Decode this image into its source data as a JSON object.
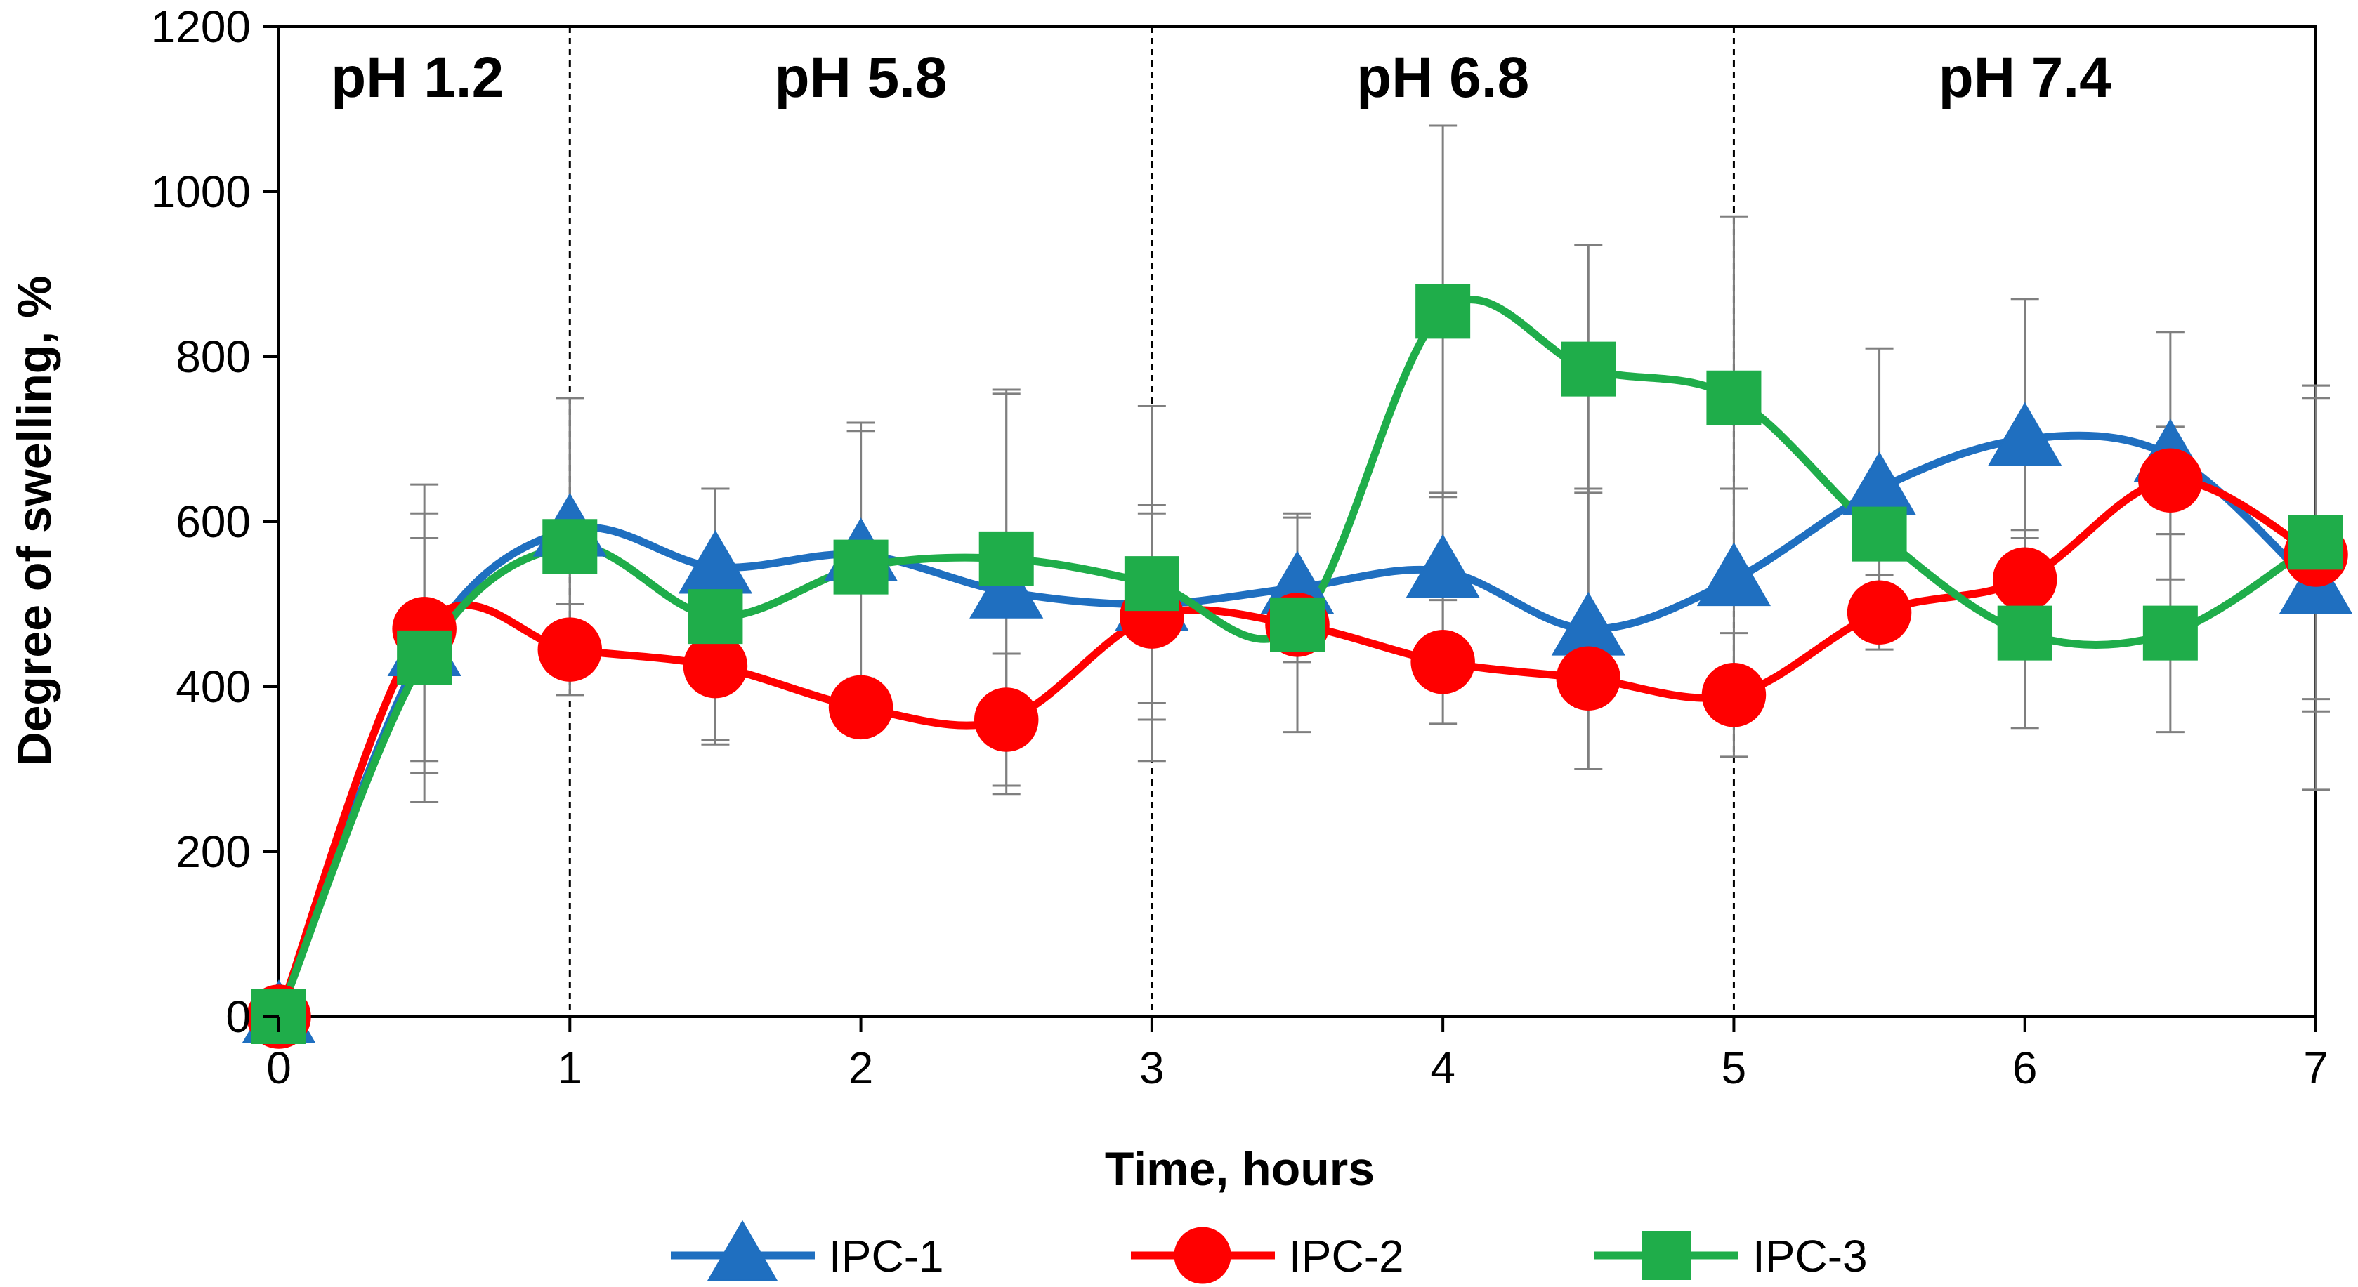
{
  "chart_data": {
    "type": "line",
    "title": "",
    "xlabel": "Time, hours",
    "ylabel": "Degree of swelling, %",
    "xlim": [
      0,
      7
    ],
    "ylim": [
      0,
      1200
    ],
    "xticks": [
      0,
      1,
      2,
      3,
      4,
      5,
      6,
      7
    ],
    "yticks": [
      0,
      200,
      400,
      600,
      800,
      1000,
      1200
    ],
    "x": [
      0,
      0.5,
      1,
      1.5,
      2,
      2.5,
      3,
      3.5,
      4,
      4.5,
      5,
      5.5,
      6,
      6.5,
      7
    ],
    "series": [
      {
        "name": "IPC-1",
        "color": "#1f6fc0",
        "marker": "triangle",
        "values": [
          0,
          445,
          590,
          545,
          560,
          515,
          500,
          520,
          540,
          470,
          530,
          640,
          700,
          680,
          520
        ],
        "errors": [
          0,
          135,
          160,
          95,
          160,
          245,
          120,
          90,
          95,
          170,
          110,
          170,
          170,
          150,
          245
        ]
      },
      {
        "name": "IPC-2",
        "color": "#ff0000",
        "marker": "circle",
        "values": [
          0,
          470,
          445,
          425,
          375,
          360,
          485,
          475,
          430,
          410,
          390,
          490,
          530,
          650,
          560
        ],
        "errors": [
          0,
          175,
          55,
          90,
          35,
          80,
          125,
          45,
          75,
          35,
          75,
          45,
          60,
          65,
          190
        ]
      },
      {
        "name": "IPC-3",
        "color": "#1fad4a",
        "marker": "square",
        "values": [
          0,
          435,
          570,
          485,
          545,
          555,
          525,
          475,
          855,
          785,
          750,
          585,
          465,
          465,
          575
        ],
        "errors": [
          0,
          175,
          180,
          155,
          165,
          200,
          215,
          130,
          225,
          150,
          220,
          0,
          115,
          120,
          190
        ]
      }
    ],
    "regions": [
      {
        "label": "pH 1.2",
        "from": 0,
        "to": 1
      },
      {
        "label": "pH 5.8",
        "from": 1,
        "to": 3
      },
      {
        "label": "pH 6.8",
        "from": 3,
        "to": 5
      },
      {
        "label": "pH 7.4",
        "from": 5,
        "to": 7
      }
    ],
    "legend_position": "bottom-center"
  }
}
